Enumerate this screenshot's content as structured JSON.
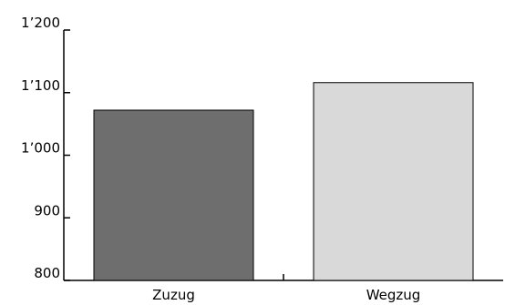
{
  "chart_data": {
    "type": "bar",
    "categories": [
      "Zuzug",
      "Wegzug"
    ],
    "values": [
      1072,
      1116
    ],
    "ylim": [
      800,
      1200
    ],
    "yticks": [
      800,
      900,
      1000,
      1100,
      1200
    ],
    "ytick_labels": [
      "800",
      "900",
      "1’000",
      "1’100",
      "1’200"
    ],
    "grid": false,
    "legend": "none",
    "colors": {
      "bars": [
        "#6e6e6e",
        "#d9d9d9"
      ],
      "bar_stroke": "#000000",
      "axis": "#000000"
    }
  }
}
